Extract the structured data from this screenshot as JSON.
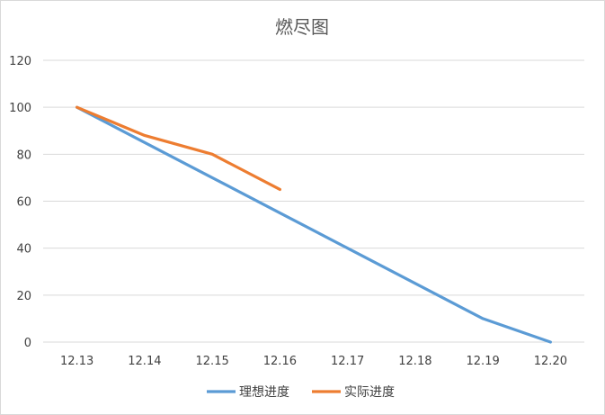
{
  "chart_data": {
    "type": "line",
    "title": "燃尽图",
    "xlabel": "",
    "ylabel": "",
    "categories": [
      "12.13",
      "12.14",
      "12.15",
      "12.16",
      "12.17",
      "12.18",
      "12.19",
      "12.20"
    ],
    "ylim": [
      0,
      120
    ],
    "yticks": [
      0,
      20,
      40,
      60,
      80,
      100,
      120
    ],
    "grid": true,
    "legend_position": "bottom",
    "series": [
      {
        "name": "理想进度",
        "color": "#5b9bd5",
        "values": [
          100,
          85,
          70,
          55,
          40,
          25,
          10,
          0
        ]
      },
      {
        "name": "实际进度",
        "color": "#ed7d31",
        "values": [
          100,
          88,
          80,
          65,
          null,
          null,
          null,
          null
        ]
      }
    ]
  }
}
